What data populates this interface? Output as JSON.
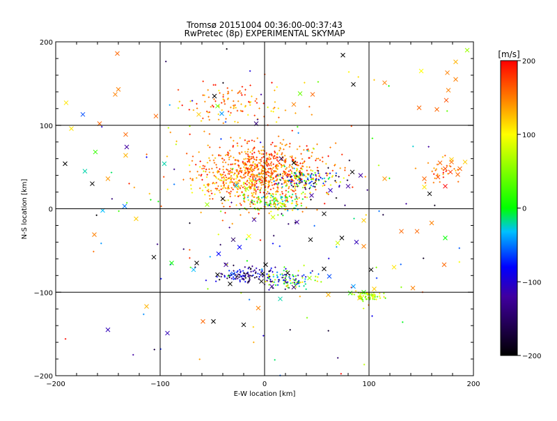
{
  "chart_data": {
    "type": "scatter",
    "title": "Tromsø 20151004 00:36:00-00:37:43",
    "subtitle": "RwPretec (8p) EXPERIMENTAL SKYMAP",
    "xlabel": "E-W location [km]",
    "ylabel": "N-S location [km]",
    "xlim": [
      -200,
      200
    ],
    "ylim": [
      -200,
      200
    ],
    "xticks": [
      -200,
      -100,
      0,
      100,
      200
    ],
    "yticks": [
      -200,
      -100,
      0,
      100,
      200
    ],
    "grid": true,
    "colorbar": {
      "label": "[m/s]",
      "min": -200,
      "max": 200,
      "ticks": [
        200,
        100,
        0,
        -100,
        -200
      ]
    },
    "colors": {
      "frame": "#000000",
      "scale": [
        "#000000",
        "#0000ff",
        "#00ff00",
        "#ffff00",
        "#ff0000"
      ]
    },
    "series": [
      {
        "marker": "cross",
        "points": [
          [
            -141,
            186,
            160
          ],
          [
            -140,
            143,
            150
          ],
          [
            -143,
            137,
            150
          ],
          [
            -190,
            127,
            110
          ],
          [
            -174,
            113,
            -60
          ],
          [
            -158,
            102,
            160
          ],
          [
            -133,
            89,
            160
          ],
          [
            -132,
            74,
            -120
          ],
          [
            -133,
            64,
            130
          ],
          [
            -185,
            96,
            110
          ],
          [
            -162,
            68,
            20
          ],
          [
            -191,
            54,
            -200
          ],
          [
            -172,
            45,
            -20
          ],
          [
            -165,
            30,
            -200
          ],
          [
            -150,
            36,
            140
          ],
          [
            -155,
            -2,
            -30
          ],
          [
            -134,
            3,
            -50
          ],
          [
            -123,
            -12,
            120
          ],
          [
            -163,
            -31,
            150
          ],
          [
            -106,
            -58,
            -200
          ],
          [
            -89,
            -65,
            0
          ],
          [
            -65,
            -65,
            -200
          ],
          [
            -93,
            -149,
            -110
          ],
          [
            -150,
            -145,
            -110
          ],
          [
            -59,
            -135,
            160
          ],
          [
            -20,
            -139,
            -200
          ],
          [
            -49,
            -135,
            -200
          ],
          [
            -33,
            -90,
            -200
          ],
          [
            -30,
            -78,
            -60
          ],
          [
            -37,
            -67,
            -120
          ],
          [
            -44,
            -54,
            -80
          ],
          [
            -24,
            -46,
            -80
          ],
          [
            -3,
            -87,
            -200
          ],
          [
            -2,
            -78,
            -200
          ],
          [
            7,
            -93,
            -120
          ],
          [
            15,
            -108,
            -20
          ],
          [
            22,
            -77,
            -200
          ],
          [
            43,
            -83,
            60
          ],
          [
            57,
            -72,
            -200
          ],
          [
            62,
            -81,
            -60
          ],
          [
            61,
            -103,
            130
          ],
          [
            85,
            -93,
            -40
          ],
          [
            91,
            -107,
            120
          ],
          [
            105,
            -96,
            120
          ],
          [
            82,
            -101,
            20
          ],
          [
            95,
            -100,
            20
          ],
          [
            102,
            -73,
            -200
          ],
          [
            124,
            -70,
            110
          ],
          [
            142,
            -95,
            150
          ],
          [
            172,
            -67,
            160
          ],
          [
            173,
            -35,
            0
          ],
          [
            160,
            -17,
            150
          ],
          [
            146,
            -27,
            160
          ],
          [
            131,
            -27,
            160
          ],
          [
            95,
            -14,
            120
          ],
          [
            88,
            -40,
            -110
          ],
          [
            74,
            -35,
            -200
          ],
          [
            70,
            -41,
            80
          ],
          [
            95,
            -45,
            150
          ],
          [
            44,
            -37,
            -200
          ],
          [
            31,
            -16,
            -120
          ],
          [
            57,
            -6,
            -200
          ],
          [
            63,
            22,
            -110
          ],
          [
            80,
            27,
            -120
          ],
          [
            84,
            44,
            -200
          ],
          [
            92,
            40,
            -120
          ],
          [
            115,
            36,
            140
          ],
          [
            153,
            36,
            160
          ],
          [
            185,
            41,
            160
          ],
          [
            187,
            48,
            160
          ],
          [
            178,
            44,
            180
          ],
          [
            173,
            48,
            170
          ],
          [
            166,
            38,
            170
          ],
          [
            179,
            59,
            120
          ],
          [
            173,
            27,
            200
          ],
          [
            168,
            55,
            160
          ],
          [
            153,
            26,
            110
          ],
          [
            158,
            18,
            -200
          ],
          [
            179,
            56,
            160
          ],
          [
            192,
            56,
            120
          ],
          [
            148,
            121,
            160
          ],
          [
            174,
            130,
            170
          ],
          [
            165,
            119,
            160
          ],
          [
            176,
            142,
            150
          ],
          [
            183,
            155,
            150
          ],
          [
            183,
            176,
            130
          ],
          [
            194,
            190,
            60
          ],
          [
            175,
            163,
            150
          ],
          [
            150,
            165,
            100
          ],
          [
            115,
            151,
            150
          ],
          [
            75,
            184,
            -200
          ],
          [
            85,
            149,
            -200
          ],
          [
            28,
            125,
            150
          ],
          [
            46,
            137,
            160
          ],
          [
            34,
            138,
            40
          ],
          [
            -48,
            135,
            -200
          ],
          [
            -63,
            113,
            120
          ],
          [
            -41,
            114,
            -40
          ],
          [
            -45,
            123,
            40
          ],
          [
            -8,
            102,
            -140
          ],
          [
            16,
            60,
            -160
          ],
          [
            28,
            55,
            -200
          ],
          [
            20,
            32,
            130
          ],
          [
            45,
            16,
            -120
          ],
          [
            -17,
            24,
            60
          ],
          [
            -27,
            28,
            -30
          ],
          [
            -40,
            12,
            -200
          ],
          [
            -55,
            5,
            60
          ],
          [
            -10,
            -13,
            -120
          ],
          [
            8,
            -10,
            80
          ],
          [
            -15,
            -33,
            100
          ],
          [
            -30,
            -37,
            -150
          ],
          [
            1,
            -67,
            -200
          ],
          [
            -45,
            -79,
            -200
          ],
          [
            28,
            -94,
            -150
          ],
          [
            -68,
            -73,
            -30
          ],
          [
            -6,
            -119,
            150
          ],
          [
            -113,
            -117,
            130
          ],
          [
            -104,
            111,
            160
          ],
          [
            -96,
            54,
            -20
          ]
        ]
      },
      {
        "marker": "dot",
        "clusters": [
          {
            "center": [
              -5,
              45
            ],
            "spread": [
              62,
              35
            ],
            "count": 760,
            "values": [
              120,
              200
            ]
          },
          {
            "center": [
              -30,
              30
            ],
            "spread": [
              40,
              18
            ],
            "count": 120,
            "values": [
              80,
              180
            ]
          },
          {
            "center": [
              40,
              35
            ],
            "spread": [
              38,
              14
            ],
            "count": 140,
            "values": [
              -200,
              120
            ]
          },
          {
            "center": [
              10,
              8
            ],
            "spread": [
              28,
              12
            ],
            "count": 140,
            "values": [
              -40,
              160
            ]
          },
          {
            "center": [
              -20,
              -80
            ],
            "spread": [
              24,
              10
            ],
            "count": 110,
            "values": [
              -200,
              -60
            ]
          },
          {
            "center": [
              25,
              -85
            ],
            "spread": [
              26,
              12
            ],
            "count": 110,
            "values": [
              -150,
              130
            ]
          },
          {
            "center": [
              100,
              -105
            ],
            "spread": [
              12,
              6
            ],
            "count": 70,
            "values": [
              20,
              120
            ]
          },
          {
            "center": [
              -30,
              125
            ],
            "spread": [
              55,
              30
            ],
            "count": 110,
            "values": [
              100,
              200
            ]
          },
          {
            "center": [
              0,
              0
            ],
            "spread": [
              190,
              190
            ],
            "count": 170,
            "values": [
              -200,
              200
            ]
          },
          {
            "center": [
              170,
              45
            ],
            "spread": [
              18,
              15
            ],
            "count": 30,
            "values": [
              120,
              200
            ]
          }
        ]
      }
    ]
  }
}
